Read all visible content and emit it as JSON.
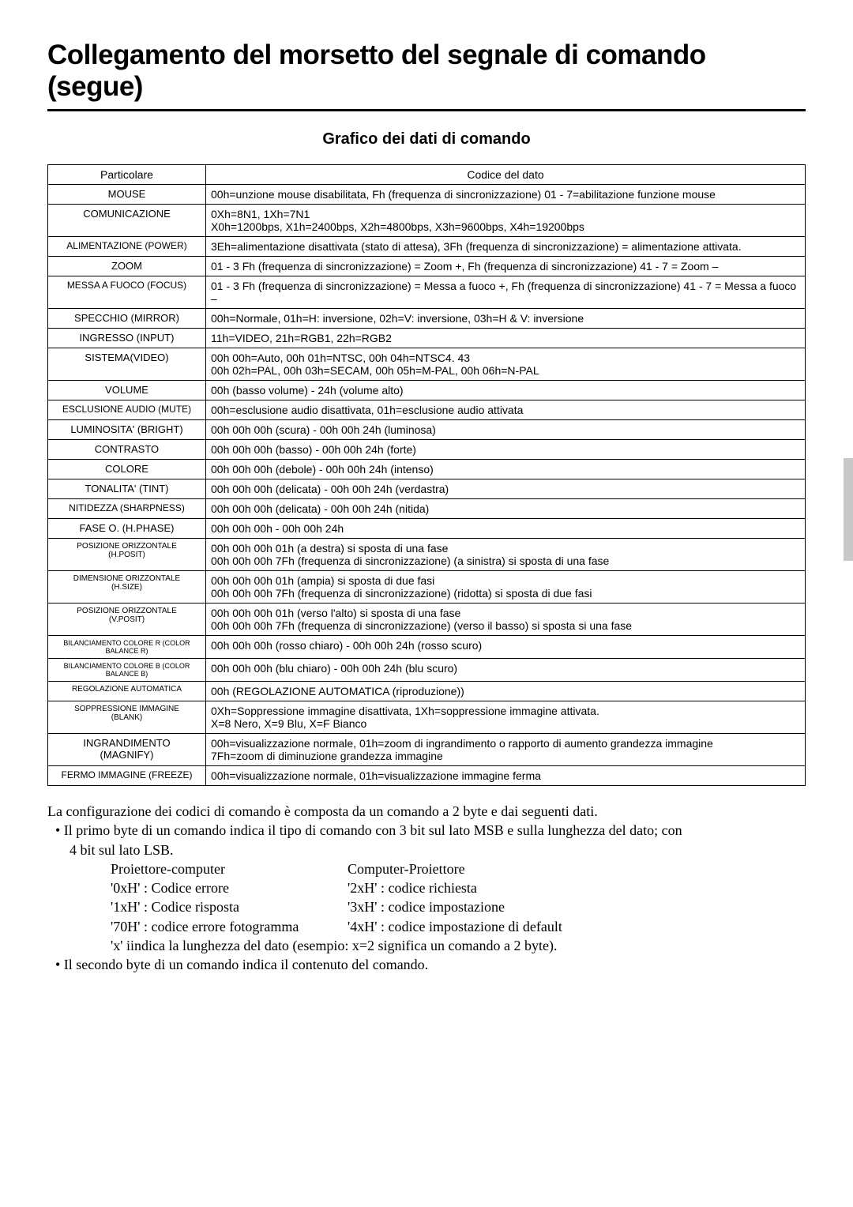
{
  "page_title": "Collegamento del morsetto del segnale di comando (segue)",
  "subtitle": "Grafico dei dati di comando",
  "table": {
    "header_left": "Particolare",
    "header_right": "Codice del dato",
    "rows": [
      {
        "label": "MOUSE",
        "code": "00h=unzione mouse disabilitata, Fh (frequenza di sincronizzazione) 01 - 7=abilitazione funzione mouse",
        "cls": ""
      },
      {
        "label": "COMUNICAZIONE",
        "code": "0Xh=8N1, 1Xh=7N1\nX0h=1200bps, X1h=2400bps, X2h=4800bps, X3h=9600bps, X4h=19200bps",
        "cls": ""
      },
      {
        "label": "ALIMENTAZIONE (POWER)",
        "code": "3Eh=alimentazione disattivata (stato di attesa), 3Fh (frequenza di sincronizzazione) = alimentazione attivata.",
        "cls": "medium"
      },
      {
        "label": "ZOOM",
        "code": "01 - 3 Fh (frequenza di sincronizzazione) = Zoom +, Fh (frequenza di sincronizzazione) 41 - 7 = Zoom –",
        "cls": ""
      },
      {
        "label": "MESSA A FUOCO (FOCUS)",
        "code": "01 - 3 Fh (frequenza di sincronizzazione) = Messa a fuoco +, Fh (frequenza di sincronizzazione) 41 - 7 = Messa a fuoco –",
        "cls": "medium"
      },
      {
        "label": "SPECCHIO (MIRROR)",
        "code": "00h=Normale, 01h=H: inversione, 02h=V: inversione, 03h=H & V: inversione",
        "cls": ""
      },
      {
        "label": "INGRESSO (INPUT)",
        "code": "11h=VIDEO, 21h=RGB1, 22h=RGB2",
        "cls": ""
      },
      {
        "label": "SISTEMA(VIDEO)",
        "code": "00h  00h=Auto,  00h  01h=NTSC,  00h  04h=NTSC4. 43\n00h  02h=PAL,  00h  03h=SECAM,  00h  05h=M-PAL,  00h  06h=N-PAL",
        "cls": ""
      },
      {
        "label": "VOLUME",
        "code": "00h (basso volume) -  24h (volume alto)",
        "cls": ""
      },
      {
        "label": "ESCLUSIONE AUDIO (MUTE)",
        "code": "00h=esclusione audio disattivata, 01h=esclusione audio attivata",
        "cls": "medium"
      },
      {
        "label": "LUMINOSITA' (BRIGHT)",
        "code": "00h  00h  00h (scura) - 00h  00h  24h (luminosa)",
        "cls": ""
      },
      {
        "label": "CONTRASTO",
        "code": "00h  00h  00h (basso) - 00h  00h  24h (forte)",
        "cls": ""
      },
      {
        "label": "COLORE",
        "code": "00h  00h  00h (debole) - 00h  00h  24h (intenso)",
        "cls": ""
      },
      {
        "label": "TONALITA' (TINT)",
        "code": "00h  00h  00h (delicata) - 00h  00h  24h (verdastra)",
        "cls": ""
      },
      {
        "label": "NITIDEZZA (SHARPNESS)",
        "code": "00h  00h  00h (delicata) - 00h  00h  24h (nitida)",
        "cls": "medium"
      },
      {
        "label": "FASE O. (H.PHASE)",
        "code": "00h  00h  00h - 00h  00h  24h",
        "cls": ""
      },
      {
        "label": "POSIZIONE ORIZZONTALE\n(H.POSIT)",
        "code": "00h  00h  00h  01h (a destra) si sposta di una fase\n00h  00h  00h  7Fh (frequenza di sincronizzazione) (a sinistra) si sposta di una fase",
        "cls": "small"
      },
      {
        "label": "DIMENSIONE ORIZZONTALE\n(H.SIZE)",
        "code": "00h  00h  00h  01h (ampia) si sposta di due fasi\n00h  00h  00h  7Fh (frequenza di sincronizzazione) (ridotta) si sposta di due fasi",
        "cls": "small"
      },
      {
        "label": "POSIZIONE ORIZZONTALE\n(V.POSIT)",
        "code": "00h  00h  00h  01h (verso l'alto) si sposta di una fase\n00h  00h  00h  7Fh  (frequenza di sincronizzazione) (verso il basso) si sposta si una fase",
        "cls": "small"
      },
      {
        "label": "BILANCIAMENTO COLORE  R (COLOR BALANCE  R)",
        "code": "00h  00h  00h (rosso chiaro) - 00h  00h  24h (rosso scuro)",
        "cls": "xsmall"
      },
      {
        "label": "BILANCIAMENTO COLORE  B (COLOR BALANCE  B)",
        "code": "00h  00h  00h (blu chiaro) - 00h  00h  24h (blu scuro)",
        "cls": "xsmall"
      },
      {
        "label": "REGOLAZIONE AUTOMATICA",
        "code": "00h (REGOLAZIONE AUTOMATICA (riproduzione))",
        "cls": "small"
      },
      {
        "label": "SOPPRESSIONE IMMAGINE\n(BLANK)",
        "code": "0Xh=Soppressione immagine disattivata, 1Xh=soppressione immagine attivata.\nX=8 Nero, X=9 Blu, X=F Bianco",
        "cls": "small"
      },
      {
        "label": "INGRANDIMENTO\n(MAGNIFY)",
        "code": "00h=visualizzazione normale, 01h=zoom di ingrandimento o rapporto di aumento grandezza immagine\n7Fh=zoom di diminuzione grandezza immagine",
        "cls": ""
      },
      {
        "label": "FERMO IMMAGINE (FREEZE)",
        "code": "00h=visualizzazione normale, 01h=visualizzazione immagine ferma",
        "cls": "medium"
      }
    ]
  },
  "notes": {
    "line1": "La configurazione dei codici di comando è composta da un comando a 2 byte e dai seguenti dati.",
    "bullet1": "• Il primo byte di un comando indica il tipo di comando con 3 bit sul lato MSB e sulla lunghezza del dato; con",
    "bullet1b": "4 bit sul lato LSB.",
    "col1_title": "Proiettore-computer",
    "col2_title": "Computer-Proiettore",
    "col1_r1": "'0xH' : Codice errore",
    "col2_r1": "'2xH' : codice richiesta",
    "col1_r2": "'1xH' : Codice risposta",
    "col2_r2": "'3xH' : codice impostazione",
    "col1_r3": "'70H' : codice errore fotogramma",
    "col2_r3": "'4xH' : codice impostazione di default",
    "x_note": "'x' iindica la lunghezza del dato (esempio: x=2 significa un comando a 2 byte).",
    "bullet2": "• Il secondo byte di un comando indica il contenuto del comando."
  }
}
